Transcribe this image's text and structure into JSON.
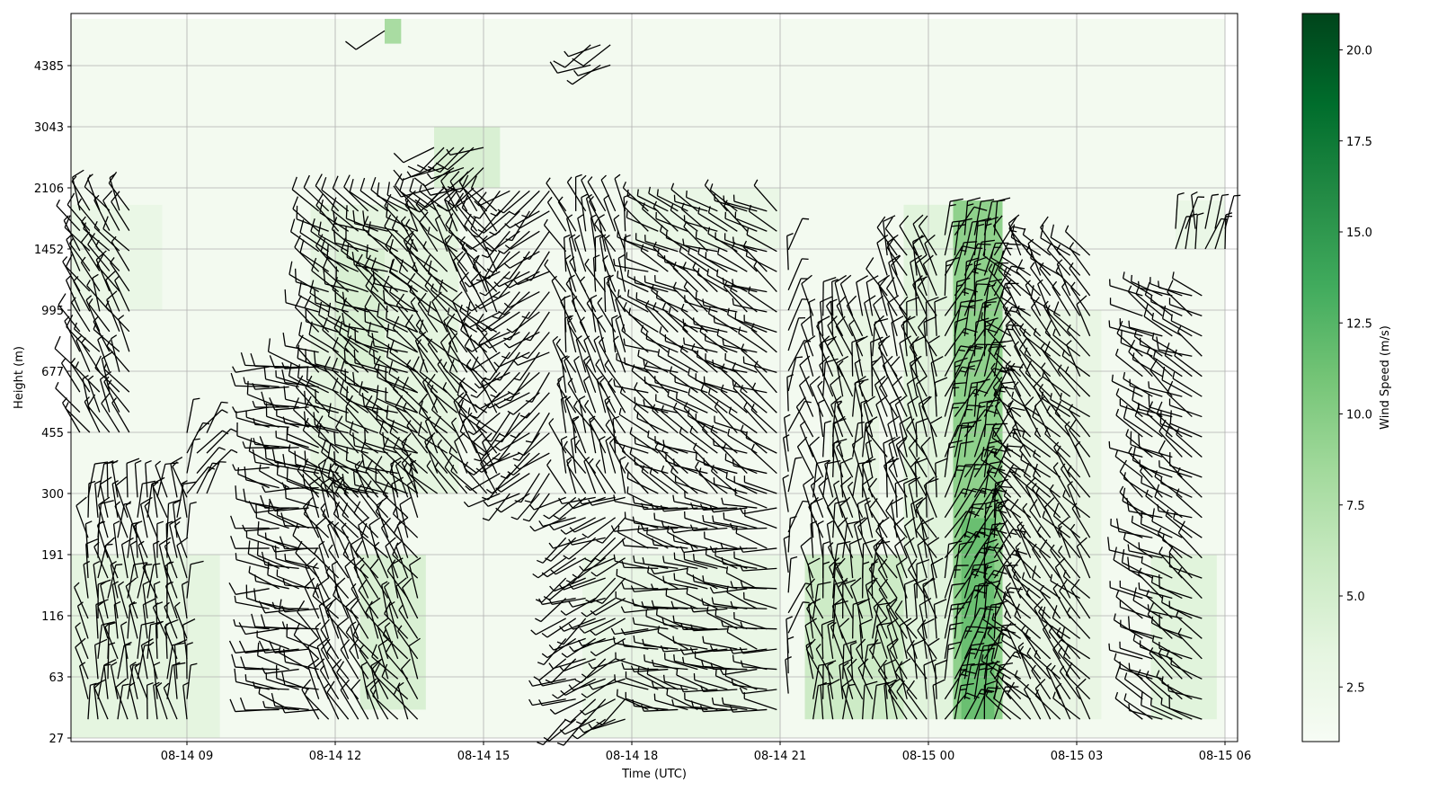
{
  "chart_data": {
    "type": "heatmap",
    "subtype": "wind barbs over wind-speed heatmap",
    "xlabel": "Time (UTC)",
    "ylabel": "Height (m)",
    "x_ticks": [
      "08-14 09",
      "08-14 12",
      "08-14 15",
      "08-14 18",
      "08-14 21",
      "08-15 00",
      "08-15 03",
      "08-15 06"
    ],
    "x_range": [
      "08-14 06:20",
      "08-15 06:15"
    ],
    "y_ticks": [
      27,
      63,
      116,
      191,
      300,
      455,
      677,
      995,
      1452,
      2106,
      3043,
      4385
    ],
    "grid": true,
    "colorbar": {
      "label": "Wind Speed (m/s)",
      "colormap": "Greens",
      "range": [
        1,
        21
      ],
      "ticks": [
        "2.5",
        "5.0",
        "7.5",
        "10.0",
        "12.5",
        "15.0",
        "17.5",
        "20.0"
      ],
      "colors": [
        "#f7fcf5",
        "#e5f5e0",
        "#c7e9c0",
        "#a1d99b",
        "#74c476",
        "#41ab5d",
        "#238b45",
        "#006d2c",
        "#00441b"
      ]
    },
    "speed_regions": [
      {
        "t0": "08-14 06:40",
        "t1": "08-15 06:00",
        "h0": 27,
        "h1": 5800,
        "speed": 1.6
      },
      {
        "t0": "08-14 06:40",
        "t1": "08-14 09:40",
        "h0": 27,
        "h1": 191,
        "speed": 3.5
      },
      {
        "t0": "08-14 06:40",
        "t1": "08-14 08:30",
        "h0": 995,
        "h1": 1900,
        "speed": 2.8
      },
      {
        "t0": "08-14 11:30",
        "t1": "08-14 14:30",
        "h0": 300,
        "h1": 1900,
        "speed": 3.5
      },
      {
        "t0": "08-14 12:00",
        "t1": "08-14 13:00",
        "h0": 700,
        "h1": 1452,
        "speed": 4.5
      },
      {
        "t0": "08-14 12:30",
        "t1": "08-14 13:50",
        "h0": 40,
        "h1": 191,
        "speed": 4.5
      },
      {
        "t0": "08-14 13:00",
        "t1": "08-14 13:20",
        "h0": 5000,
        "h1": 5800,
        "speed": 8
      },
      {
        "t0": "08-14 14:00",
        "t1": "08-14 15:20",
        "h0": 2106,
        "h1": 3043,
        "speed": 4.5
      },
      {
        "t0": "08-14 17:00",
        "t1": "08-14 21:00",
        "h0": 27,
        "h1": 191,
        "speed": 2.8
      },
      {
        "t0": "08-14 18:00",
        "t1": "08-14 21:00",
        "h0": 1452,
        "h1": 2106,
        "speed": 2.8
      },
      {
        "t0": "08-14 21:30",
        "t1": "08-14 23:30",
        "h0": 35,
        "h1": 191,
        "speed": 5.5
      },
      {
        "t0": "08-14 22:00",
        "t1": "08-14 23:00",
        "h0": 191,
        "h1": 995,
        "speed": 3
      },
      {
        "t0": "08-14 23:30",
        "t1": "08-15 00:30",
        "h0": 35,
        "h1": 1900,
        "speed": 3.8
      },
      {
        "t0": "08-15 00:30",
        "t1": "08-15 01:30",
        "h0": 35,
        "h1": 1950,
        "speed": 9.5
      },
      {
        "t0": "08-15 00:40",
        "t1": "08-15 01:20",
        "h0": 35,
        "h1": 250,
        "speed": 11.5
      },
      {
        "t0": "08-15 01:30",
        "t1": "08-15 03:30",
        "h0": 35,
        "h1": 995,
        "speed": 3
      },
      {
        "t0": "08-15 04:30",
        "t1": "08-15 05:50",
        "h0": 35,
        "h1": 191,
        "speed": 3.8
      },
      {
        "t0": "08-15 05:00",
        "t1": "08-15 06:00",
        "h0": 1452,
        "h1": 1950,
        "speed": 2.8
      }
    ],
    "barb_groups": [
      {
        "t0": "08-14 06:50",
        "t1": "08-14 07:50",
        "h0": 455,
        "h1": 1900,
        "dir": 330,
        "speed": 7
      },
      {
        "t0": "08-14 07:00",
        "t1": "08-14 09:00",
        "h0": 35,
        "h1": 300,
        "dir": 355,
        "speed": 7
      },
      {
        "t0": "08-14 09:00",
        "t1": "08-14 09:30",
        "h0": 300,
        "h1": 455,
        "dir": 30,
        "speed": 5
      },
      {
        "t0": "08-14 10:40",
        "t1": "08-14 11:40",
        "h0": 40,
        "h1": 700,
        "dir": 280,
        "speed": 8
      },
      {
        "t0": "08-14 11:40",
        "t1": "08-14 13:40",
        "h0": 35,
        "h1": 300,
        "dir": 330,
        "speed": 8
      },
      {
        "t0": "08-14 11:40",
        "t1": "08-14 13:40",
        "h0": 300,
        "h1": 2000,
        "dir": 300,
        "speed": 9
      },
      {
        "t0": "08-14 13:40",
        "t1": "08-14 15:20",
        "h0": 300,
        "h1": 2000,
        "dir": 320,
        "speed": 8
      },
      {
        "t0": "08-14 14:00",
        "t1": "08-14 15:00",
        "h0": 2106,
        "h1": 3000,
        "dir": 240,
        "speed": 8
      },
      {
        "t0": "08-14 15:20",
        "t1": "08-14 16:20",
        "h0": 300,
        "h1": 2100,
        "dir": 230,
        "speed": 6
      },
      {
        "t0": "08-14 16:40",
        "t1": "08-14 18:00",
        "h0": 35,
        "h1": 300,
        "dir": 240,
        "speed": 6
      },
      {
        "t0": "08-14 16:40",
        "t1": "08-14 18:00",
        "h0": 300,
        "h1": 1900,
        "dir": 340,
        "speed": 5
      },
      {
        "t0": "08-14 18:20",
        "t1": "08-14 21:00",
        "h0": 40,
        "h1": 300,
        "dir": 280,
        "speed": 5
      },
      {
        "t0": "08-14 18:20",
        "t1": "08-14 21:00",
        "h0": 300,
        "h1": 1900,
        "dir": 300,
        "speed": 6
      },
      {
        "t0": "08-14 21:10",
        "t1": "08-14 21:20",
        "h0": 50,
        "h1": 1600,
        "dir": 10,
        "speed": 6
      },
      {
        "t0": "08-14 21:40",
        "t1": "08-14 23:00",
        "h0": 35,
        "h1": 995,
        "dir": 350,
        "speed": 8
      },
      {
        "t0": "08-14 23:10",
        "t1": "08-15 00:10",
        "h0": 35,
        "h1": 1500,
        "dir": 340,
        "speed": 9
      },
      {
        "t0": "08-15 00:20",
        "t1": "08-15 01:20",
        "h0": 35,
        "h1": 1600,
        "dir": 20,
        "speed": 13
      },
      {
        "t0": "08-15 01:40",
        "t1": "08-15 03:20",
        "h0": 35,
        "h1": 1500,
        "dir": 320,
        "speed": 7
      },
      {
        "t0": "08-15 04:20",
        "t1": "08-15 05:40",
        "h0": 35,
        "h1": 1200,
        "dir": 300,
        "speed": 7
      },
      {
        "t0": "08-15 05:00",
        "t1": "08-15 06:00",
        "h0": 1452,
        "h1": 1700,
        "dir": 10,
        "speed": 5
      },
      {
        "t0": "08-14 13:00",
        "t1": "08-14 13:10",
        "h0": 5400,
        "h1": 5400,
        "dir": 220,
        "speed": 8
      },
      {
        "t0": "08-14 17:10",
        "t1": "08-14 17:40",
        "h0": 4400,
        "h1": 5000,
        "dir": 240,
        "speed": 7
      }
    ]
  }
}
